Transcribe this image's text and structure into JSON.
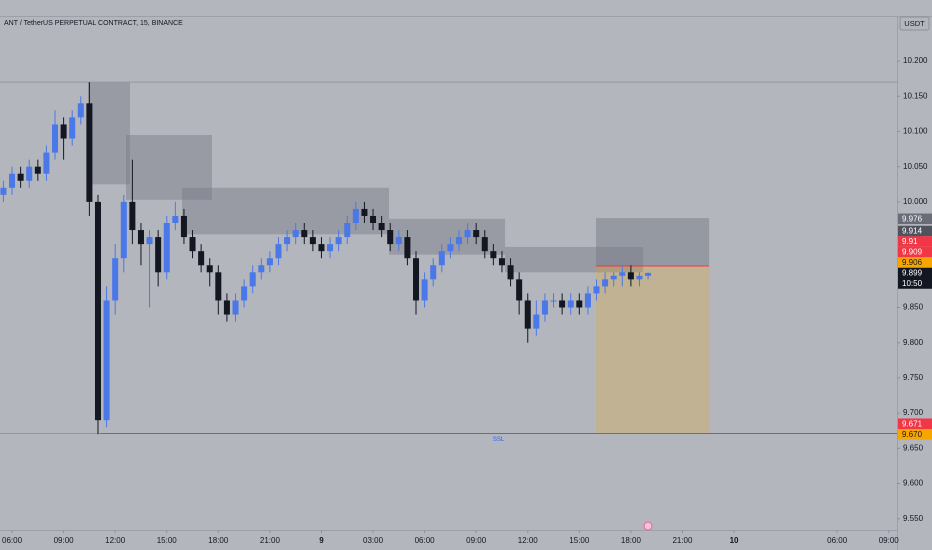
{
  "chart_data": {
    "type": "candlestick",
    "title": "ANT / TetherUS PERPETUAL CONTRACT, 15, BINANCE",
    "currency": "USDT",
    "up_color": "#4a78e8",
    "down_color": "#131722",
    "xlim": [
      -0.7,
      51.48
    ],
    "ylim": [
      9.534,
      10.264
    ],
    "xticks": [
      {
        "value": 0,
        "label": "06:00"
      },
      {
        "value": 3,
        "label": "09:00"
      },
      {
        "value": 6,
        "label": "12:00"
      },
      {
        "value": 9,
        "label": "15:00"
      },
      {
        "value": 12,
        "label": "18:00"
      },
      {
        "value": 15,
        "label": "21:00"
      },
      {
        "value": 18,
        "label": "9"
      },
      {
        "value": 21,
        "label": "03:00"
      },
      {
        "value": 24,
        "label": "06:00"
      },
      {
        "value": 27,
        "label": "09:00"
      },
      {
        "value": 30,
        "label": "12:00"
      },
      {
        "value": 33,
        "label": "15:00"
      },
      {
        "value": 36,
        "label": "18:00"
      },
      {
        "value": 39,
        "label": "21:00"
      },
      {
        "value": 42,
        "label": "10"
      },
      {
        "value": 48,
        "label": "06:00"
      },
      {
        "value": 51,
        "label": "09:00"
      }
    ],
    "yticks": [
      {
        "value": 10.2,
        "label": "10.200"
      },
      {
        "value": 10.15,
        "label": "10.150"
      },
      {
        "value": 10.1,
        "label": "10.100"
      },
      {
        "value": 10.05,
        "label": "10.050"
      },
      {
        "value": 10.0,
        "label": "10.000"
      },
      {
        "value": 9.95,
        "label": "9.950"
      },
      {
        "value": 9.9,
        "label": "9.900"
      },
      {
        "value": 9.85,
        "label": "9.850"
      },
      {
        "value": 9.8,
        "label": "9.800"
      },
      {
        "value": 9.75,
        "label": "9.750"
      },
      {
        "value": 9.7,
        "label": "9.700"
      },
      {
        "value": 9.65,
        "label": "9.650"
      },
      {
        "value": 9.6,
        "label": "9.600"
      },
      {
        "value": 9.55,
        "label": "9.550"
      }
    ],
    "x": [
      -0.5,
      0,
      0.5,
      1,
      1.5,
      2,
      2.5,
      3,
      3.5,
      4,
      4.5,
      5,
      5.5,
      6,
      6.5,
      7,
      7.5,
      8,
      8.5,
      9,
      9.5,
      10,
      10.5,
      11,
      11.5,
      12,
      12.5,
      13,
      13.5,
      14,
      14.5,
      15,
      15.5,
      16,
      16.5,
      17,
      17.5,
      18,
      18.5,
      19,
      19.5,
      20,
      20.5,
      21,
      21.5,
      22,
      22.5,
      23,
      23.5,
      24,
      24.5,
      25,
      25.5,
      26,
      26.5,
      27,
      27.5,
      28,
      28.5,
      29,
      29.5,
      30,
      30.5,
      31,
      31.5,
      32,
      32.5,
      33,
      33.5,
      34,
      34.5,
      35,
      35.5,
      36,
      36.5,
      37
    ],
    "open": [
      10.01,
      10.02,
      10.04,
      10.03,
      10.05,
      10.04,
      10.07,
      10.11,
      10.09,
      10.12,
      10.14,
      10.0,
      9.69,
      9.86,
      9.92,
      10.0,
      9.96,
      9.94,
      9.95,
      9.9,
      9.97,
      9.98,
      9.95,
      9.93,
      9.91,
      9.9,
      9.86,
      9.84,
      9.86,
      9.88,
      9.9,
      9.91,
      9.92,
      9.94,
      9.95,
      9.96,
      9.95,
      9.94,
      9.93,
      9.94,
      9.95,
      9.97,
      9.99,
      9.98,
      9.97,
      9.96,
      9.94,
      9.95,
      9.92,
      9.86,
      9.89,
      9.91,
      9.93,
      9.94,
      9.95,
      9.96,
      9.95,
      9.93,
      9.92,
      9.91,
      9.89,
      9.86,
      9.82,
      9.84,
      9.86,
      9.86,
      9.85,
      9.86,
      9.85,
      9.87,
      9.88,
      9.89,
      9.895,
      9.9,
      9.89,
      9.895
    ],
    "high": [
      10.03,
      10.05,
      10.05,
      10.06,
      10.06,
      10.08,
      10.13,
      10.12,
      10.13,
      10.15,
      10.17,
      10.01,
      9.88,
      9.94,
      10.01,
      10.06,
      9.97,
      9.96,
      9.96,
      9.98,
      10.0,
      9.99,
      9.96,
      9.94,
      9.92,
      9.91,
      9.87,
      9.87,
      9.89,
      9.91,
      9.92,
      9.93,
      9.95,
      9.96,
      9.97,
      9.97,
      9.96,
      9.95,
      9.95,
      9.96,
      9.98,
      10.0,
      10.0,
      9.99,
      9.98,
      9.97,
      9.96,
      9.96,
      9.93,
      9.9,
      9.92,
      9.94,
      9.95,
      9.96,
      9.97,
      9.97,
      9.96,
      9.94,
      9.93,
      9.92,
      9.9,
      9.87,
      9.86,
      9.87,
      9.87,
      9.87,
      9.87,
      9.87,
      9.88,
      9.89,
      9.9,
      9.9,
      9.91,
      9.91,
      9.9,
      9.9
    ],
    "low": [
      10.0,
      10.01,
      10.02,
      10.02,
      10.03,
      10.03,
      10.06,
      10.06,
      10.08,
      10.11,
      9.98,
      9.67,
      9.68,
      9.84,
      9.9,
      9.94,
      9.91,
      9.85,
      9.88,
      9.89,
      9.96,
      9.94,
      9.92,
      9.9,
      9.88,
      9.84,
      9.83,
      9.83,
      9.85,
      9.87,
      9.89,
      9.9,
      9.91,
      9.93,
      9.94,
      9.94,
      9.93,
      9.92,
      9.92,
      9.93,
      9.94,
      9.96,
      9.97,
      9.96,
      9.95,
      9.93,
      9.93,
      9.91,
      9.84,
      9.85,
      9.88,
      9.9,
      9.92,
      9.93,
      9.94,
      9.94,
      9.92,
      9.91,
      9.9,
      9.88,
      9.84,
      9.8,
      9.81,
      9.83,
      9.85,
      9.84,
      9.84,
      9.84,
      9.84,
      9.86,
      9.87,
      9.88,
      9.88,
      9.88,
      9.88,
      9.89
    ],
    "close": [
      10.02,
      10.04,
      10.03,
      10.05,
      10.04,
      10.07,
      10.11,
      10.09,
      10.12,
      10.14,
      10.0,
      9.69,
      9.86,
      9.92,
      10.0,
      9.96,
      9.94,
      9.95,
      9.9,
      9.97,
      9.98,
      9.95,
      9.93,
      9.91,
      9.9,
      9.86,
      9.84,
      9.86,
      9.88,
      9.9,
      9.91,
      9.92,
      9.94,
      9.95,
      9.96,
      9.95,
      9.94,
      9.93,
      9.94,
      9.95,
      9.97,
      9.99,
      9.98,
      9.97,
      9.96,
      9.94,
      9.95,
      9.92,
      9.86,
      9.89,
      9.91,
      9.93,
      9.94,
      9.95,
      9.96,
      9.95,
      9.93,
      9.92,
      9.91,
      9.89,
      9.86,
      9.82,
      9.84,
      9.86,
      9.86,
      9.85,
      9.86,
      9.85,
      9.87,
      9.88,
      9.89,
      9.895,
      9.9,
      9.89,
      9.895,
      9.899
    ],
    "zones": [
      {
        "t": [
          4.42,
          6.86
        ],
        "price": [
          10.17,
          10.025
        ]
      },
      {
        "t": [
          6.63,
          11.63
        ],
        "price": [
          10.095,
          10.003
        ]
      },
      {
        "t": [
          9.89,
          21.93
        ],
        "price": [
          10.02,
          9.954
        ]
      },
      {
        "t": [
          21.93,
          28.68
        ],
        "price": [
          9.976,
          9.925
        ]
      },
      {
        "t": [
          28.68,
          36.71
        ],
        "price": [
          9.936,
          9.9
        ]
      }
    ],
    "position": {
      "t": [
        33.97,
        40.55
      ],
      "top": 9.977,
      "entry": 9.909,
      "bottom": 9.671
    },
    "lines": [
      {
        "price": 10.17,
        "t": [
          -0.7,
          51.48
        ],
        "color": "#9598a1"
      },
      {
        "price": 9.671,
        "t": [
          -0.7,
          5.12
        ],
        "color": "#9598a1"
      },
      {
        "price": 9.671,
        "t": [
          5.12,
          51.48
        ],
        "color": "#f23645",
        "label": "SSL"
      }
    ],
    "price_tags": [
      {
        "value": 9.976,
        "color": "#6a6d78"
      },
      {
        "value": 9.914,
        "color": "#50535e"
      },
      {
        "value": 9.91,
        "color": "#f23645"
      },
      {
        "value": 9.909,
        "color": "#f23645"
      },
      {
        "value": 9.906,
        "color": "#f7a600"
      },
      {
        "value": 9.899,
        "color": "#131722",
        "sublabel": "10:50"
      },
      {
        "value": 9.671,
        "color": "#f23645"
      },
      {
        "value": 9.67,
        "value_label": "9.670",
        "color": "#f7a600"
      }
    ]
  }
}
